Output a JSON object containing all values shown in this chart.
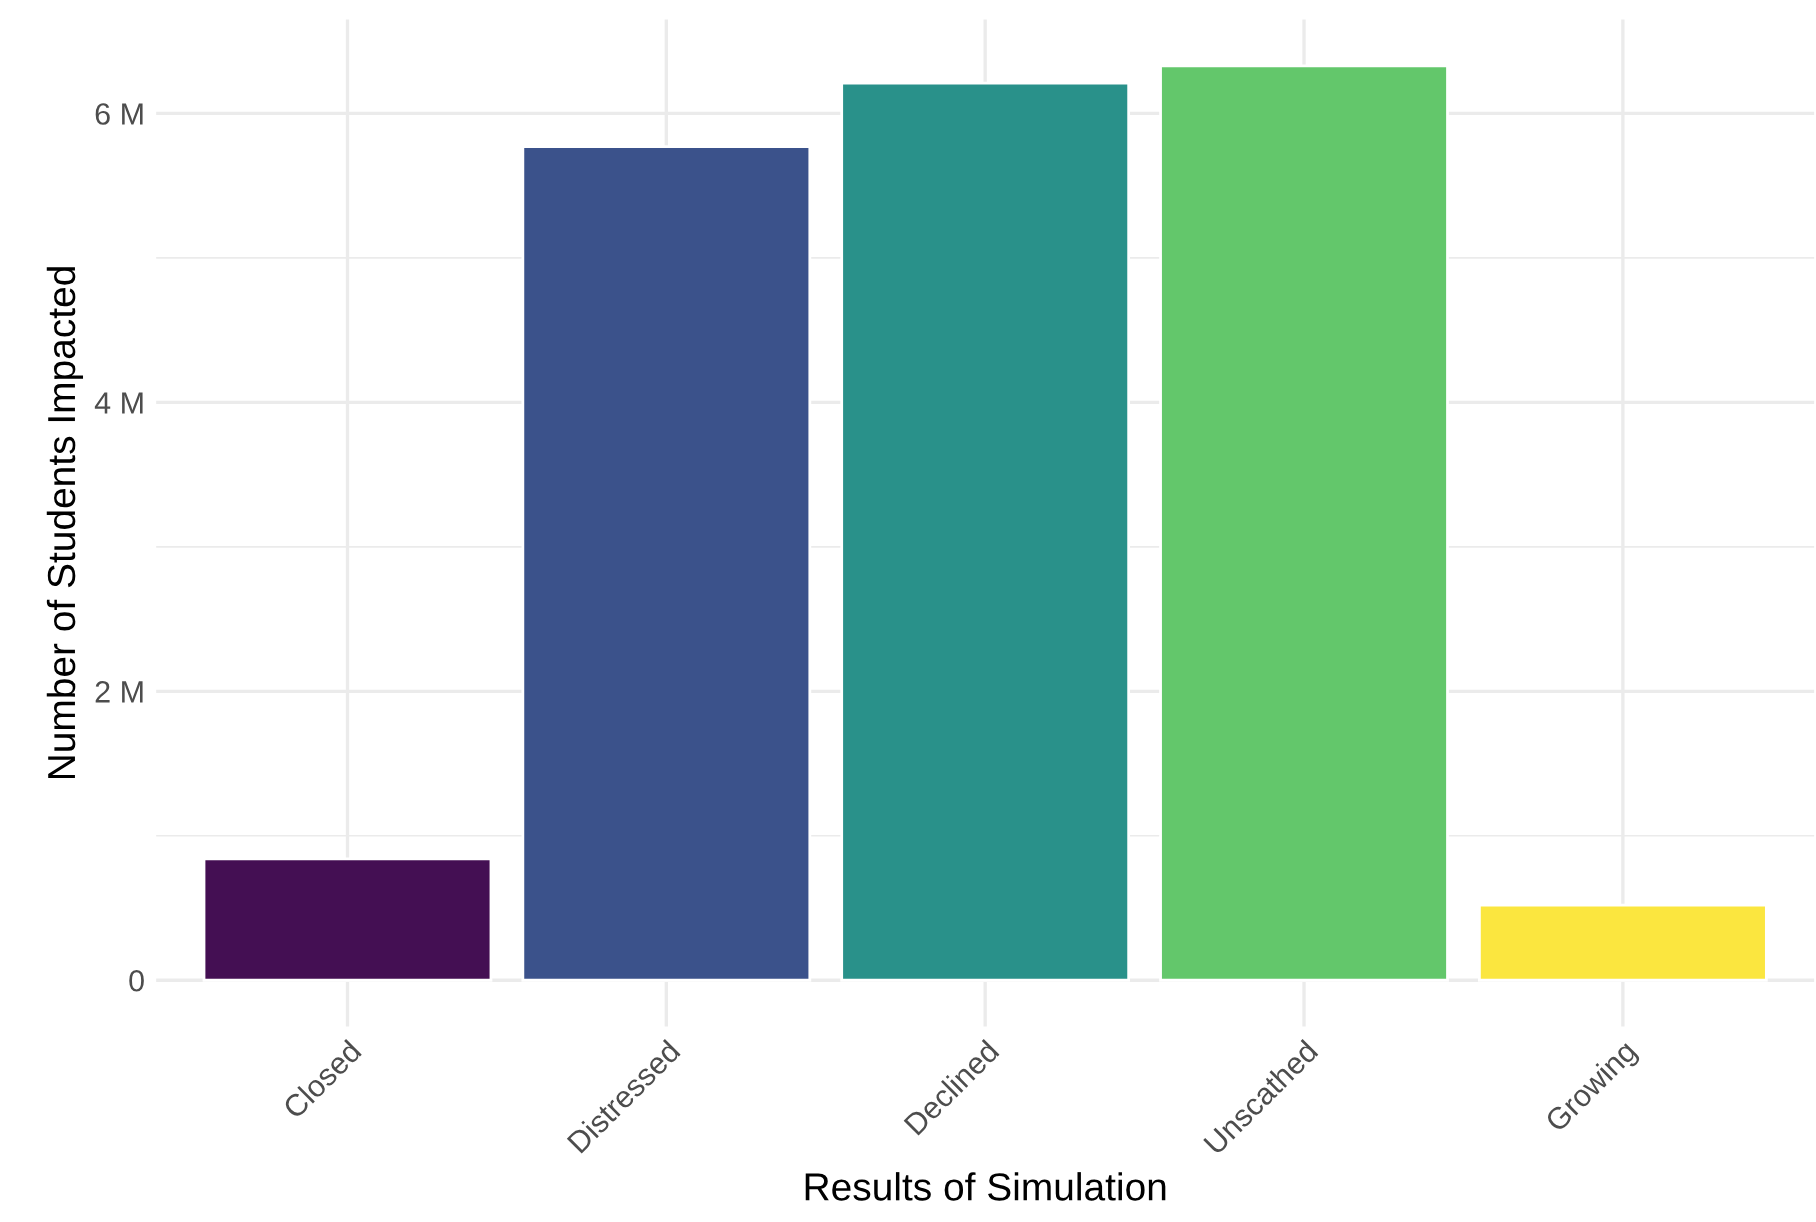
{
  "chart_data": {
    "type": "bar",
    "xlabel": "Results of Simulation",
    "ylabel": "Number of Students Impacted",
    "categories": [
      "Closed",
      "Distressed",
      "Declined",
      "Unscathed",
      "Growing"
    ],
    "values": [
      0.84,
      5.77,
      6.21,
      6.33,
      0.52
    ],
    "colors": [
      "#440f53",
      "#3b528b",
      "#29918a",
      "#63c76b",
      "#fbe63f"
    ],
    "ylim": [
      -0.32,
      6.65
    ],
    "yticks": [
      {
        "value": 0,
        "label": "0"
      },
      {
        "value": 2,
        "label": "2 M"
      },
      {
        "value": 4,
        "label": "4 M"
      },
      {
        "value": 6,
        "label": "6 M"
      }
    ],
    "grid": true
  }
}
